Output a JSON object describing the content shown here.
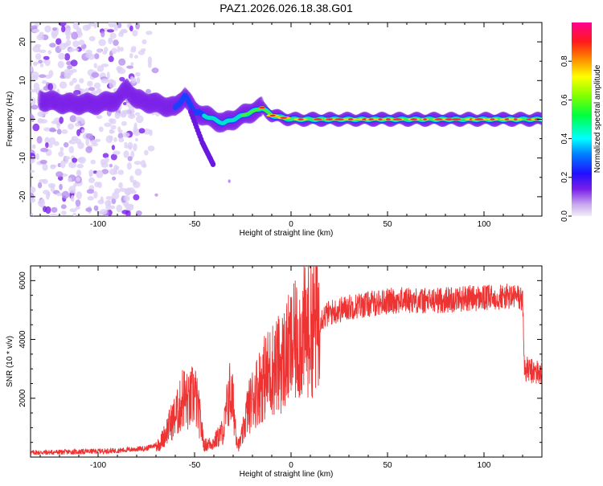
{
  "title": "PAZ1.2026.026.18.38.G01",
  "chart_data": [
    {
      "type": "heatmap",
      "panel": "top",
      "xlabel": "Height of straight line (km)",
      "ylabel": "Frequency (Hz)",
      "xlim": [
        -135,
        130
      ],
      "ylim": [
        -25,
        25
      ],
      "xticks": [
        -100,
        -50,
        0,
        50,
        100
      ],
      "yticks": [
        -20,
        -10,
        0,
        10,
        20
      ],
      "colorbar": {
        "label": "Normalized spectral amplitude",
        "range": [
          0,
          1
        ],
        "ticks": [
          "0.0",
          "0.2",
          "0.4",
          "0.6",
          "0.8"
        ]
      },
      "ridge": {
        "description_points_height_km": [
          -130,
          -115,
          -100,
          -90,
          -85,
          -80,
          -70,
          -60,
          -55,
          -50,
          -45,
          -40,
          -35,
          -30,
          -25,
          -20,
          -15,
          -10,
          0,
          20,
          50,
          100,
          130
        ],
        "frequency_hz": [
          5,
          4,
          4,
          5,
          8,
          5,
          4,
          3,
          6,
          2,
          1,
          0,
          -1,
          0,
          1,
          2,
          3,
          1,
          0,
          0,
          0,
          0,
          0
        ]
      },
      "branch": {
        "height_km": [
          -52,
          -49,
          -46,
          -44,
          -42,
          -40
        ],
        "frequency_hz": [
          2,
          -2,
          -6,
          -8,
          -10,
          -12
        ]
      },
      "noise_region_height_km": [
        -135,
        -75
      ]
    },
    {
      "type": "line",
      "panel": "bottom",
      "xlabel": "Height of straight line (km)",
      "ylabel": "SNR (10 * v/v)",
      "xlim": [
        -135,
        130
      ],
      "ylim": [
        0,
        6500
      ],
      "xticks": [
        -100,
        -50,
        0,
        50,
        100
      ],
      "yticks": [
        2000,
        4000,
        6000
      ],
      "series": [
        {
          "name": "SNR",
          "color": "#ee3333",
          "x": [
            -135,
            -110,
            -90,
            -75,
            -68,
            -62,
            -58,
            -56,
            -53,
            -50,
            -47,
            -45,
            -40,
            -35,
            -32,
            -30,
            -28,
            -27,
            -25,
            -23,
            -20,
            -15,
            -10,
            -5,
            0,
            5,
            10,
            15,
            20,
            30,
            40,
            50,
            60,
            70,
            80,
            90,
            100,
            110,
            118,
            120,
            121,
            125,
            130
          ],
          "values": [
            150,
            180,
            220,
            300,
            450,
            1200,
            1600,
            2100,
            1800,
            2200,
            1200,
            400,
            500,
            900,
            2200,
            1800,
            600,
            400,
            800,
            1500,
            2000,
            2600,
            3000,
            3200,
            3700,
            4100,
            4400,
            4700,
            4900,
            5100,
            5200,
            5300,
            5350,
            5300,
            5350,
            5400,
            5400,
            5450,
            5450,
            5300,
            3000,
            2900,
            2850
          ]
        }
      ]
    }
  ],
  "colors": {
    "line": "#ee3333",
    "axis": "#000000"
  }
}
